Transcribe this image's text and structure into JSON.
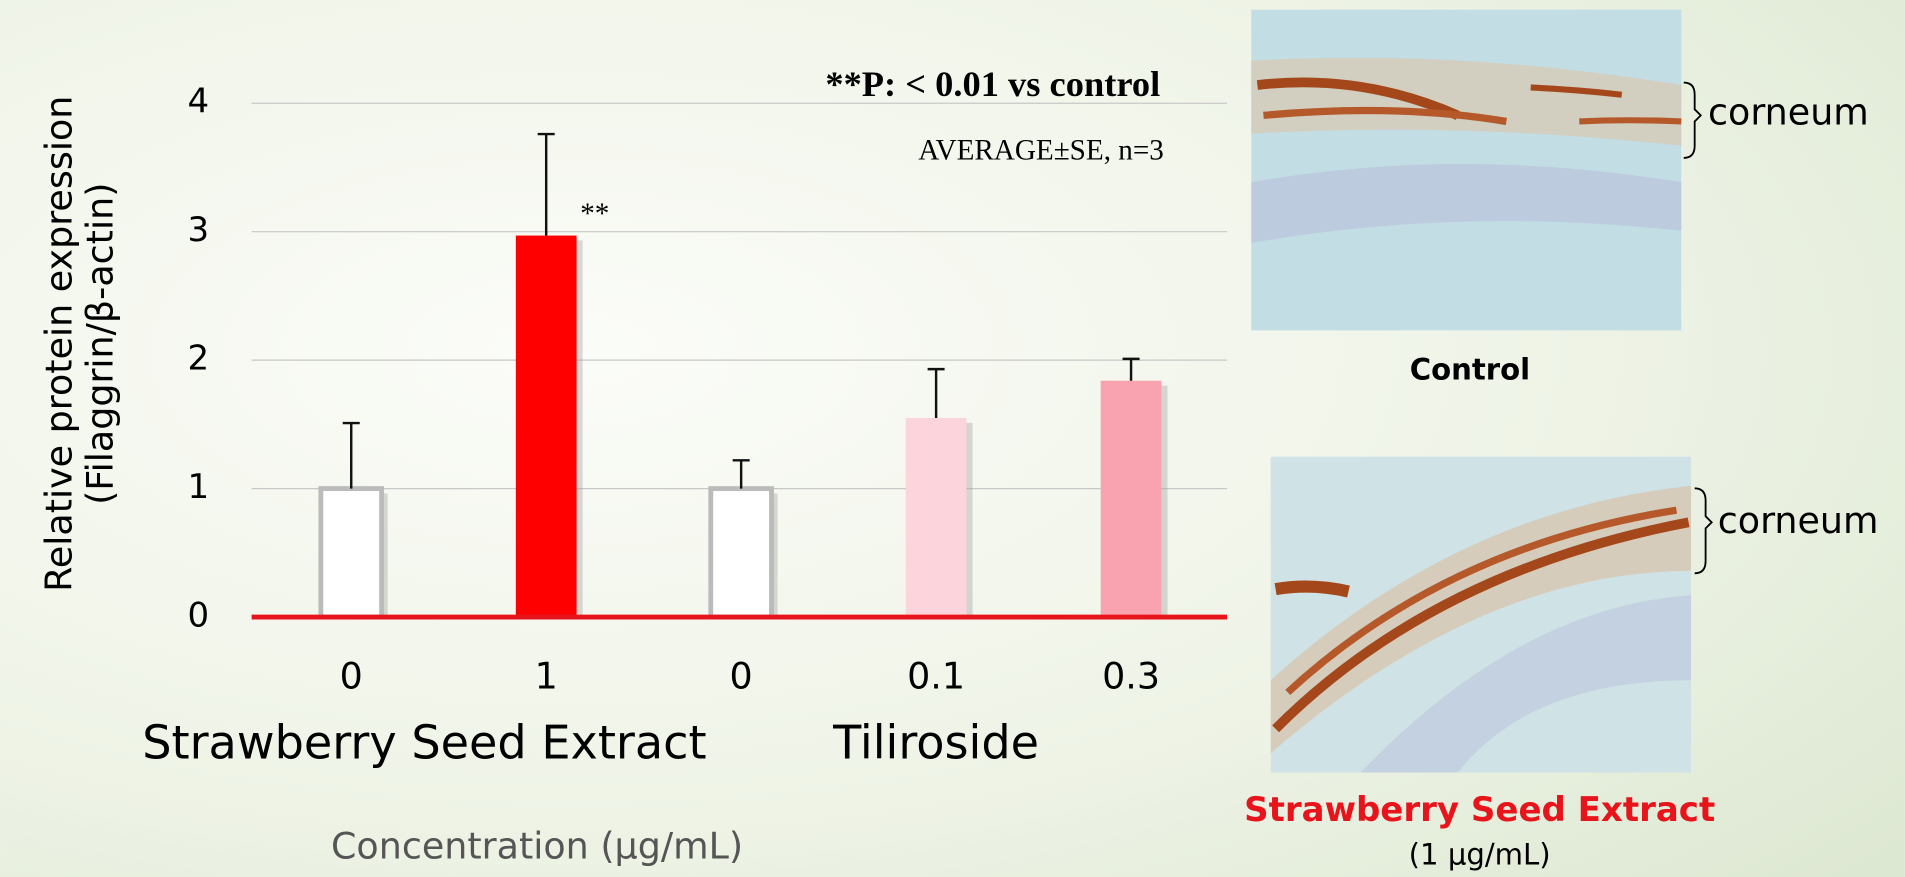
{
  "chart_data": {
    "type": "bar",
    "categories": [
      "0",
      "1",
      "0",
      "0.1",
      "0.3"
    ],
    "values": [
      1,
      2.97,
      1,
      1.55,
      1.84
    ],
    "errors": [
      0.51,
      0.79,
      0.22,
      0.38,
      0.17
    ],
    "colors": [
      "#ffffff",
      "#ff0000",
      "#ffffff",
      "#fcd5dc",
      "#f9a3b0"
    ],
    "groups": [
      "Strawberry Seed Extract",
      "Tiliroside"
    ],
    "ylim": [
      0,
      4
    ],
    "yticks": [
      0,
      1,
      2,
      3,
      4
    ],
    "grid": true,
    "ylabel": [
      "Relative protein expression",
      "(Filaggrin/β-actin)"
    ],
    "xlabel": "Concentration (μg/mL)",
    "significance": "**P: < 0.01 vs control",
    "stats_note": "AVERAGE±SE, n=3",
    "marker": {
      "index": 1,
      "text": "**"
    }
  },
  "panels": [
    {
      "caption": "Control",
      "label": "corneum"
    },
    {
      "caption": "Strawberry Seed Extract",
      "subcaption": "(1 μg/mL)",
      "label": "corneum"
    }
  ]
}
